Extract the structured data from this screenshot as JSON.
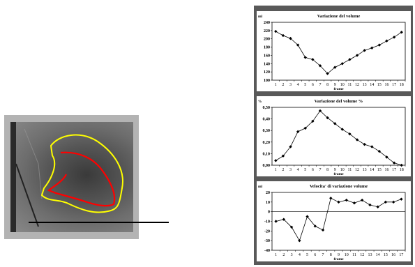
{
  "image_panel": {
    "contour_colors": {
      "outer": "#ffff00",
      "inner": "#ff0000"
    }
  },
  "chart_data": [
    {
      "type": "line",
      "title": "Variazione del volume",
      "ylabel": "ml",
      "xlabel": "frame",
      "ylim": [
        100,
        240
      ],
      "yticks": [
        100,
        120,
        140,
        160,
        180,
        200,
        220,
        240
      ],
      "ytick_labels": [
        "100",
        "120",
        "140",
        "160",
        "180",
        "200",
        "220",
        "240"
      ],
      "x": [
        1,
        2,
        3,
        4,
        5,
        6,
        7,
        8,
        9,
        10,
        11,
        12,
        13,
        14,
        15,
        16,
        17,
        18
      ],
      "values": [
        218,
        208,
        201,
        185,
        155,
        150,
        135,
        116,
        131,
        140,
        150,
        160,
        172,
        178,
        185,
        195,
        204,
        216
      ],
      "grid": false,
      "legend": "none"
    },
    {
      "type": "line",
      "title": "Variazione del volume %",
      "ylabel": "%",
      "xlabel": "frame",
      "ylim": [
        0,
        0.5
      ],
      "yticks": [
        0,
        0.1,
        0.2,
        0.3,
        0.4,
        0.5
      ],
      "ytick_labels": [
        "0,00",
        "0,10",
        "0,20",
        "0,30",
        "0,40",
        "0,50"
      ],
      "x": [
        1,
        2,
        3,
        4,
        5,
        6,
        7,
        8,
        9,
        10,
        11,
        12,
        13,
        14,
        15,
        16,
        17,
        18
      ],
      "values": [
        0.04,
        0.08,
        0.16,
        0.29,
        0.32,
        0.38,
        0.47,
        0.41,
        0.36,
        0.31,
        0.27,
        0.22,
        0.18,
        0.16,
        0.12,
        0.07,
        0.02,
        0.0
      ],
      "grid": false,
      "legend": "none"
    },
    {
      "type": "line",
      "title": "Velocita' di variazione volume",
      "ylabel": "ml",
      "xlabel": "frame",
      "ylim": [
        -40,
        20
      ],
      "yticks": [
        -40,
        -30,
        -20,
        -10,
        0,
        10,
        20
      ],
      "ytick_labels": [
        "-40",
        "-30",
        "-20",
        "-10",
        "0",
        "10",
        "20"
      ],
      "x": [
        1,
        2,
        3,
        4,
        5,
        6,
        7,
        8,
        9,
        10,
        11,
        12,
        13,
        14,
        15,
        16,
        17
      ],
      "values": [
        -10,
        -8,
        -16,
        -30,
        -5,
        -15,
        -19,
        14,
        10,
        12,
        9,
        12,
        7,
        5,
        10,
        10,
        13
      ],
      "grid": false,
      "legend": "none"
    }
  ]
}
